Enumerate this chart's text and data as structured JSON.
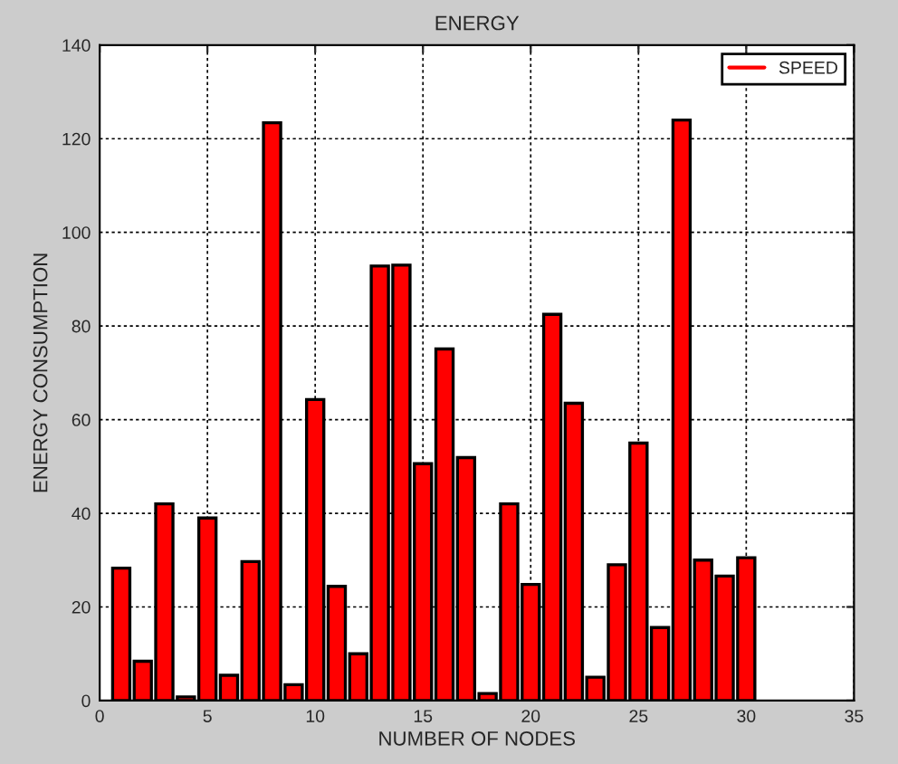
{
  "chart_data": {
    "type": "bar",
    "title": "ENERGY",
    "xlabel": "NUMBER OF NODES",
    "ylabel": "ENERGY CONSUMPTION",
    "x": [
      1,
      2,
      3,
      4,
      5,
      6,
      7,
      8,
      9,
      10,
      11,
      12,
      13,
      14,
      15,
      16,
      17,
      18,
      19,
      20,
      21,
      22,
      23,
      24,
      25,
      26,
      27,
      28,
      29,
      30
    ],
    "series": [
      {
        "name": "SPEED",
        "color": "#ff0000",
        "values": [
          28.3,
          8.4,
          42,
          0.8,
          39,
          5.4,
          29.7,
          123.4,
          3.4,
          64.3,
          24.4,
          10,
          92.8,
          93,
          50.6,
          75.1,
          51.9,
          1.5,
          42,
          24.8,
          82.5,
          63.5,
          5,
          29,
          55,
          15.6,
          124,
          30,
          26.6,
          30.5
        ]
      }
    ],
    "xlim": [
      0,
      35
    ],
    "xticks": [
      0,
      5,
      10,
      15,
      20,
      25,
      30,
      35
    ],
    "ylim": [
      0,
      140
    ],
    "yticks": [
      0,
      20,
      40,
      60,
      80,
      100,
      120,
      140
    ],
    "grid": true,
    "legend": "top right"
  }
}
